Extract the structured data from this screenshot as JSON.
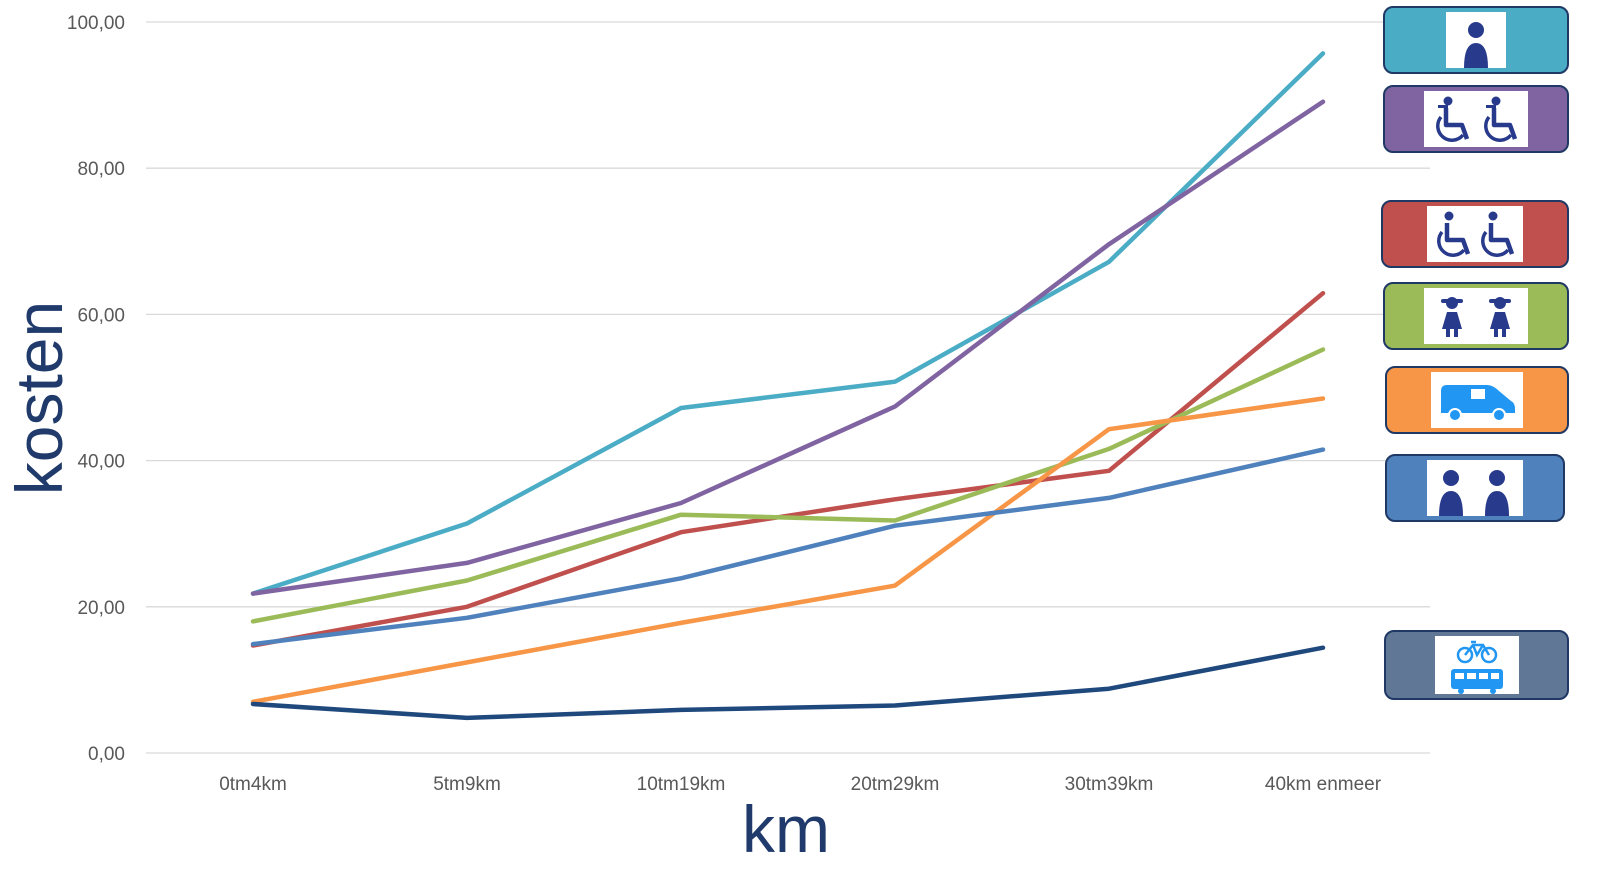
{
  "chart_data": {
    "type": "line",
    "title": "",
    "xlabel": "km",
    "ylabel": "kosten",
    "categories": [
      "0tm4km",
      "5tm9km",
      "10tm19km",
      "20tm29km",
      "30tm39km",
      "40km enmeer"
    ],
    "ylim": [
      0,
      100
    ],
    "yticks": [
      0,
      20,
      40,
      60,
      80,
      100
    ],
    "ytick_labels": [
      "0,00",
      "20,00",
      "40,00",
      "60,00",
      "80,00",
      "100,00"
    ],
    "grid": "horizontal",
    "legend_position": "right",
    "series": [
      {
        "color": "#4bacc6",
        "legend_icon": "person-icon",
        "values": [
          21.8,
          31.4,
          47.2,
          50.8,
          67.2,
          95.7
        ]
      },
      {
        "color": "#8064a2",
        "legend_icon": "wheelchair-pair-with-companion-icon",
        "values": [
          21.8,
          26.0,
          34.2,
          47.4,
          69.6,
          89.1
        ]
      },
      {
        "color": "#c0504d",
        "legend_icon": "wheelchair-pair-icon",
        "values": [
          14.7,
          20.0,
          30.2,
          34.7,
          38.6,
          62.9
        ]
      },
      {
        "color": "#9bbb59",
        "legend_icon": "girl-pair-icon",
        "values": [
          18.0,
          23.6,
          32.6,
          31.8,
          41.6,
          55.2
        ]
      },
      {
        "color": "#f79646",
        "legend_icon": "van-icon",
        "values": [
          7.0,
          12.4,
          17.8,
          22.9,
          44.3,
          48.5
        ]
      },
      {
        "color": "#4f81bd",
        "legend_icon": "person-pair-icon",
        "values": [
          14.9,
          18.5,
          23.9,
          31.1,
          34.9,
          41.5
        ]
      },
      {
        "color": "#1f497d",
        "legend_icon": "bicycle-and-bus-icon",
        "values": [
          6.7,
          4.8,
          5.9,
          6.5,
          8.8,
          14.4
        ]
      }
    ]
  },
  "legend": [
    {
      "icon": "person-icon",
      "fill": "#4bacc6"
    },
    {
      "icon": "wheelchair-pair-with-companion-icon",
      "fill": "#8064a2"
    },
    {
      "icon": "wheelchair-pair-icon",
      "fill": "#c0504d"
    },
    {
      "icon": "girl-pair-icon",
      "fill": "#9bbb59"
    },
    {
      "icon": "van-icon",
      "fill": "#f79646"
    },
    {
      "icon": "person-pair-icon",
      "fill": "#4f81bd"
    },
    {
      "icon": "bicycle-and-bus-icon",
      "fill": "#607896"
    }
  ],
  "colors": {
    "gridline": "#d9d9d9",
    "tick_text": "#595959",
    "axis_title": "#1f3a6b",
    "icon_dark_blue": "#283a8c",
    "icon_light_blue": "#2196f3"
  }
}
